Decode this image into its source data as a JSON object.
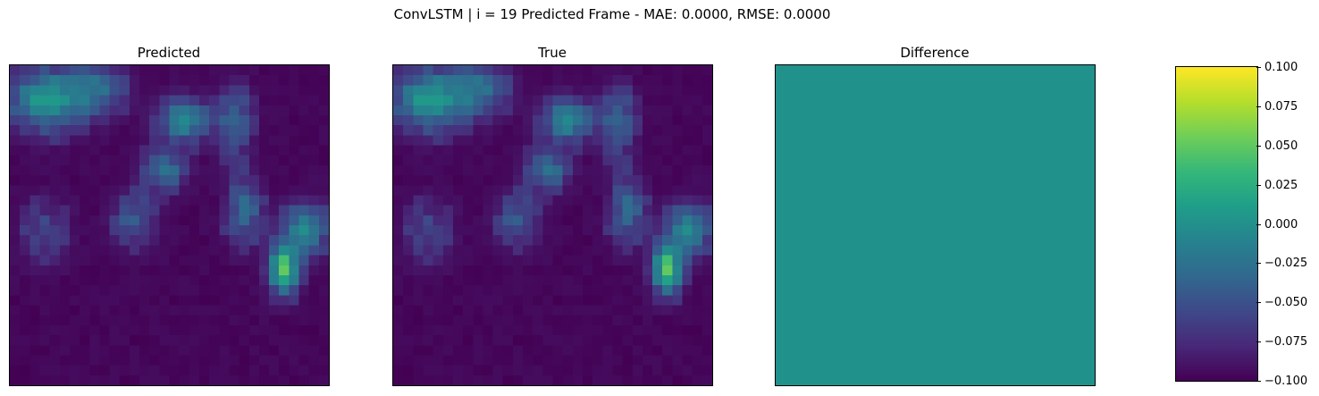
{
  "chart_data": [
    {
      "type": "heatmap",
      "title": "Predicted",
      "colormap": "viridis",
      "grid_size": [
        32,
        32
      ]
    },
    {
      "type": "heatmap",
      "title": "True",
      "colormap": "viridis",
      "grid_size": [
        32,
        32
      ]
    },
    {
      "type": "heatmap",
      "title": "Difference",
      "colormap": "viridis",
      "uniform_value": 0.0,
      "fill_color": "#21918c"
    }
  ],
  "figure": {
    "suptitle": "ConvLSTM | i = 19 Predicted Frame - MAE: 0.0000, RMSE: 0.0000"
  },
  "colorbar": {
    "vmin": -0.1,
    "vmax": 0.1,
    "ticks": [
      "0.100",
      "0.075",
      "0.050",
      "0.025",
      "0.000",
      "−0.025",
      "−0.050",
      "−0.075",
      "−0.100"
    ],
    "colors": [
      "#440154",
      "#482878",
      "#3e4989",
      "#31688e",
      "#26828e",
      "#1f9e89",
      "#35b779",
      "#6ece58",
      "#b5de2b",
      "#fde725"
    ]
  }
}
